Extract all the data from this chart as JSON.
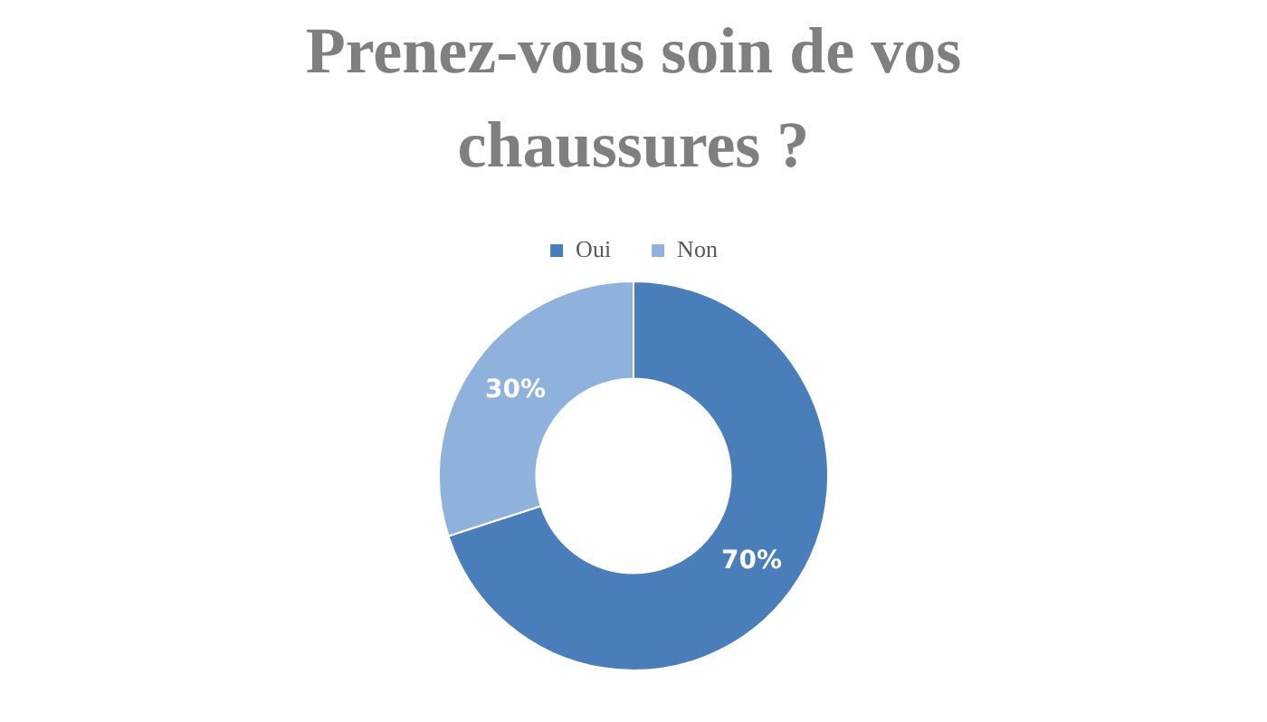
{
  "chart_data": {
    "type": "donut",
    "title": "Prenez-vous soin de vos chaussures ?",
    "legend": "top",
    "categories": [
      "Oui",
      "Non"
    ],
    "values": [
      70,
      30
    ],
    "colors": [
      "#4a7ebb",
      "#8fb2dc"
    ],
    "value_labels": [
      "70%",
      "30%"
    ]
  }
}
